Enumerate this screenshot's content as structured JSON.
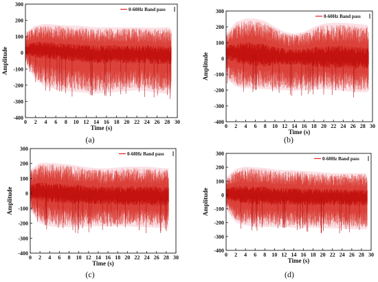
{
  "chart_data": [
    {
      "panel_label": "(a)",
      "type": "line",
      "xlabel": "Time (s)",
      "ylabel": "Amplitude",
      "xlim": [
        0,
        30
      ],
      "ylim": [
        -400,
        300
      ],
      "x_ticks": [
        0,
        2,
        4,
        6,
        8,
        10,
        12,
        14,
        16,
        18,
        20,
        22,
        24,
        26,
        28,
        30
      ],
      "y_ticks": [
        300,
        200,
        100,
        0,
        -100,
        -200,
        -300,
        -400
      ],
      "legend": {
        "position": "top-right",
        "entries": [
          "0-60Hz Band pass"
        ]
      },
      "series": [
        {
          "name": "0-60Hz Band pass",
          "color": "#e81e1e",
          "duration": 28.8,
          "envelope": {
            "t": [
              0,
              2,
              4,
              6,
              8,
              10,
              12,
              14,
              16,
              18,
              20,
              22,
              24,
              26,
              28,
              28.8
            ],
            "upper": [
              120,
              160,
              170,
              165,
              160,
              160,
              155,
              150,
              150,
              150,
              150,
              150,
              148,
              148,
              150,
              150
            ],
            "lower": [
              -60,
              -160,
              -200,
              -215,
              -225,
              -230,
              -235,
              -240,
              -235,
              -230,
              -225,
              -220,
              -225,
              -235,
              -240,
              -240
            ],
            "mean": [
              20,
              20,
              15,
              10,
              5,
              0,
              -5,
              -10,
              -10,
              -5,
              -10,
              -10,
              -10,
              -15,
              -15,
              -15
            ]
          }
        }
      ]
    },
    {
      "panel_label": "(b)",
      "type": "line",
      "xlabel": "Time (s)",
      "ylabel": "Amplitude",
      "xlim": [
        0,
        30
      ],
      "ylim": [
        -400,
        300
      ],
      "x_ticks": [
        0,
        2,
        4,
        6,
        8,
        10,
        12,
        14,
        16,
        18,
        20,
        22,
        24,
        26,
        28,
        30
      ],
      "y_ticks": [
        300,
        200,
        100,
        0,
        -100,
        -200,
        -300,
        -400
      ],
      "legend": {
        "position": "top-right",
        "entries": [
          "0-60Hz Band pass"
        ]
      },
      "series": [
        {
          "name": "0-60Hz Band pass",
          "color": "#e81e1e",
          "duration": 29.2,
          "envelope": {
            "t": [
              0,
              2,
              4,
              6,
              8,
              10,
              12,
              14,
              16,
              18,
              20,
              22,
              24,
              26,
              28,
              29.2
            ],
            "upper": [
              150,
              220,
              240,
              240,
              225,
              190,
              160,
              150,
              160,
              190,
              210,
              215,
              215,
              210,
              205,
              200
            ],
            "lower": [
              -120,
              -170,
              -180,
              -180,
              -185,
              -190,
              -190,
              -195,
              -190,
              -185,
              -185,
              -190,
              -195,
              -200,
              -205,
              -200
            ],
            "mean": [
              40,
              35,
              30,
              25,
              20,
              15,
              10,
              10,
              10,
              10,
              10,
              10,
              10,
              5,
              5,
              5
            ]
          }
        }
      ]
    },
    {
      "panel_label": "(c)",
      "type": "line",
      "xlabel": "Time (s)",
      "ylabel": "Amplitude",
      "xlim": [
        0,
        30
      ],
      "ylim": [
        -400,
        300
      ],
      "x_ticks": [
        0,
        2,
        4,
        6,
        8,
        10,
        12,
        14,
        16,
        18,
        20,
        22,
        24,
        26,
        28,
        30
      ],
      "y_ticks": [
        300,
        200,
        100,
        0,
        -100,
        -200,
        -300,
        -400
      ],
      "legend": {
        "position": "top-right",
        "entries": [
          "0-60Hz Band pass"
        ]
      },
      "series": [
        {
          "name": "0-60Hz Band pass",
          "color": "#e81e1e",
          "duration": 28.5,
          "envelope": {
            "t": [
              0,
              2,
              4,
              6,
              8,
              10,
              12,
              14,
              16,
              18,
              20,
              22,
              24,
              26,
              28,
              28.5
            ],
            "upper": [
              150,
              195,
              195,
              190,
              185,
              175,
              165,
              160,
              160,
              165,
              170,
              170,
              170,
              165,
              160,
              160
            ],
            "lower": [
              -110,
              -190,
              -210,
              -215,
              -215,
              -215,
              -210,
              -210,
              -210,
              -210,
              -210,
              -215,
              -215,
              -220,
              -220,
              -220
            ],
            "mean": [
              10,
              10,
              5,
              0,
              -5,
              -5,
              -10,
              -15,
              -15,
              -15,
              -15,
              -15,
              -15,
              -20,
              -20,
              -20
            ]
          }
        }
      ]
    },
    {
      "panel_label": "(d)",
      "type": "line",
      "xlabel": "Time (s)",
      "ylabel": "Amplitude",
      "xlim": [
        0,
        30
      ],
      "ylim": [
        -400,
        300
      ],
      "x_ticks": [
        0,
        2,
        4,
        6,
        8,
        10,
        12,
        14,
        16,
        18,
        20,
        22,
        24,
        26,
        28,
        30
      ],
      "y_ticks": [
        300,
        200,
        100,
        0,
        -100,
        -200,
        -300,
        -400
      ],
      "legend": {
        "position": "top-right",
        "entries": [
          "0-60Hz Band pass"
        ]
      },
      "series": [
        {
          "name": "0-60Hz Band pass",
          "color": "#e81e1e",
          "duration": 29.2,
          "envelope": {
            "t": [
              0,
              2,
              4,
              6,
              8,
              10,
              12,
              14,
              16,
              18,
              20,
              22,
              24,
              26,
              28,
              29.2
            ],
            "upper": [
              120,
              180,
              195,
              190,
              185,
              175,
              170,
              170,
              165,
              160,
              155,
              150,
              150,
              150,
              150,
              150
            ],
            "lower": [
              -100,
              -190,
              -210,
              -215,
              -220,
              -220,
              -220,
              -225,
              -225,
              -225,
              -230,
              -230,
              -230,
              -235,
              -235,
              -235
            ],
            "mean": [
              10,
              5,
              0,
              -5,
              -5,
              -10,
              -10,
              -10,
              -15,
              -15,
              -15,
              -15,
              -15,
              -20,
              -20,
              -20
            ]
          }
        }
      ]
    }
  ]
}
